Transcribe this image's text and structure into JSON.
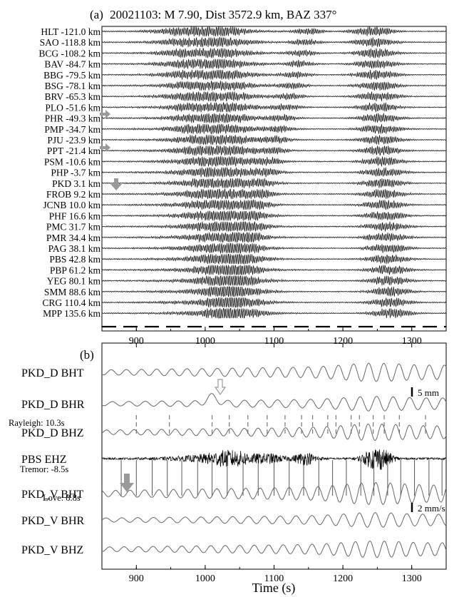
{
  "chart_data": [
    {
      "type": "line",
      "panel_label": "(a)",
      "title": "20021103: M 7.90, Dist 3572.9 km, BAZ 337°",
      "xlim": [
        850,
        1350
      ],
      "xticks": [
        900,
        1000,
        1100,
        1200,
        1300
      ],
      "grid": false,
      "legend": "none",
      "stations": [
        {
          "label": "HLT -121.0 km",
          "dist_km": -121.0
        },
        {
          "label": "SAO -118.8 km",
          "dist_km": -118.8
        },
        {
          "label": "BCG -108.2 km",
          "dist_km": -108.2
        },
        {
          "label": "BAV -84.7 km",
          "dist_km": -84.7
        },
        {
          "label": "BBG -79.5 km",
          "dist_km": -79.5
        },
        {
          "label": "BSG -78.1 km",
          "dist_km": -78.1
        },
        {
          "label": "BRV -65.3 km",
          "dist_km": -65.3
        },
        {
          "label": "PLO -51.6 km",
          "dist_km": -51.6
        },
        {
          "label": "PHR -49.3 km",
          "dist_km": -49.3
        },
        {
          "label": "PMP -34.7 km",
          "dist_km": -34.7
        },
        {
          "label": "PJU -23.9 km",
          "dist_km": -23.9
        },
        {
          "label": "PPT -21.4 km",
          "dist_km": -21.4
        },
        {
          "label": "PSM -10.6 km",
          "dist_km": -10.6
        },
        {
          "label": "PHP -3.7 km",
          "dist_km": -3.7
        },
        {
          "label": "PKD 3.1 km",
          "dist_km": 3.1
        },
        {
          "label": "FROB 9.2 km",
          "dist_km": 9.2
        },
        {
          "label": "JCNB 10.0 km",
          "dist_km": 10.0
        },
        {
          "label": "PHF 16.6 km",
          "dist_km": 16.6
        },
        {
          "label": "PMC 31.7 km",
          "dist_km": 31.7
        },
        {
          "label": "PMR 34.4 km",
          "dist_km": 34.4
        },
        {
          "label": "PAG 38.1 km",
          "dist_km": 38.1
        },
        {
          "label": "PBS 42.8 km",
          "dist_km": 42.8
        },
        {
          "label": "PBP 61.2 km",
          "dist_km": 61.2
        },
        {
          "label": "YEG 80.1 km",
          "dist_km": 80.1
        },
        {
          "label": "SMM 88.6 km",
          "dist_km": 88.6
        },
        {
          "label": "CRG 110.4 km",
          "dist_km": 110.4
        },
        {
          "label": "MPP 135.6 km",
          "dist_km": 135.6
        }
      ],
      "marker_color": "#999999"
    },
    {
      "type": "line",
      "panel_label": "(b)",
      "xlabel": "Time (s)",
      "xlim": [
        850,
        1350
      ],
      "xticks": [
        900,
        1000,
        1100,
        1200,
        1300
      ],
      "grid": false,
      "legend": "none",
      "traces": [
        {
          "label": "PKD_D BHT"
        },
        {
          "label": "PKD_D BHR"
        },
        {
          "label": "PKD_D BHZ"
        },
        {
          "label": "PBS EHZ"
        },
        {
          "label": "PKD_V BHT"
        },
        {
          "label": "PKD_V BHR"
        },
        {
          "label": "PKD_V BHZ"
        }
      ],
      "annotations": {
        "rayleigh": "Rayleigh: 10.3s",
        "tremor": "Tremor: -8.5s",
        "love": "Love:  8.8s",
        "scale_displacement": "5 mm",
        "scale_velocity": "2 mm/s"
      },
      "rayleigh_peak_times": [
        900,
        948,
        1010,
        1035,
        1062,
        1090,
        1116,
        1140,
        1156,
        1178,
        1190,
        1212,
        1224,
        1244,
        1260,
        1282,
        1320
      ],
      "love_peak_times": [
        878,
        900,
        923,
        945,
        966,
        989,
        1010,
        1032,
        1055,
        1077,
        1100,
        1122,
        1143,
        1165,
        1185,
        1205,
        1226,
        1245,
        1265,
        1284,
        1304,
        1325,
        1344
      ],
      "marker_color": "#999999"
    }
  ]
}
